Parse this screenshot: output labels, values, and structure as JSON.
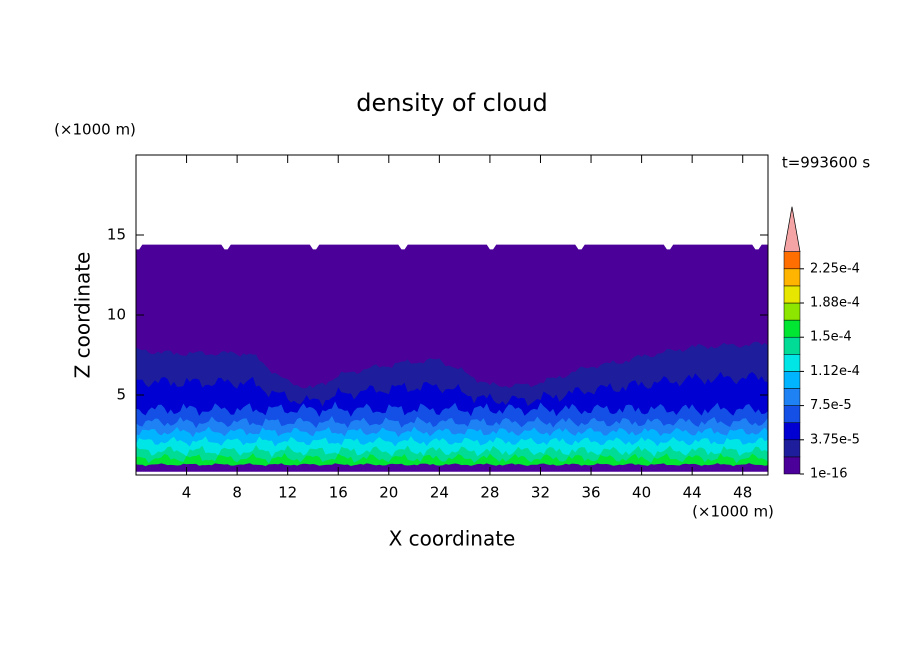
{
  "chart_data": {
    "type": "contour",
    "title": "density of cloud",
    "x_label": "X coordinate",
    "y_label": "Z coordinate",
    "x_unit": "(×1000 m)",
    "y_unit": "(×1000 m)",
    "time_label": "t=993600 s",
    "xlim": [
      0,
      50
    ],
    "ylim": [
      0,
      20
    ],
    "xticks": [
      4,
      8,
      12,
      16,
      20,
      24,
      28,
      32,
      36,
      40,
      44,
      48
    ],
    "yticks": [
      5,
      10,
      15
    ],
    "levels": [
      1e-16,
      1.875e-05,
      3.75e-05,
      5.625e-05,
      7.5e-05,
      9.375e-05,
      0.0001125,
      0.00013125,
      0.00015,
      0.00016875,
      0.0001875,
      0.00020625,
      0.000225
    ],
    "colors": [
      "#4b0099",
      "#1e1e9c",
      "#0000d2",
      "#1450e6",
      "#1e82f5",
      "#00b4ff",
      "#00e6e6",
      "#00dc96",
      "#00e632",
      "#8ce600",
      "#e6e600",
      "#ffb400",
      "#ff6e00"
    ],
    "extend_color": "#f4a4a4",
    "colorbar_ticks": [
      {
        "value": 1e-16,
        "label": "1e-16"
      },
      {
        "value": 3.75e-05,
        "label": "3.75e-5"
      },
      {
        "value": 7.5e-05,
        "label": "7.5e-5"
      },
      {
        "value": 0.0001125,
        "label": "1.12e-4"
      },
      {
        "value": 0.00015,
        "label": "1.5e-4"
      },
      {
        "value": 0.0001875,
        "label": "1.88e-4"
      },
      {
        "value": 0.000225,
        "label": "2.25e-4"
      }
    ]
  }
}
